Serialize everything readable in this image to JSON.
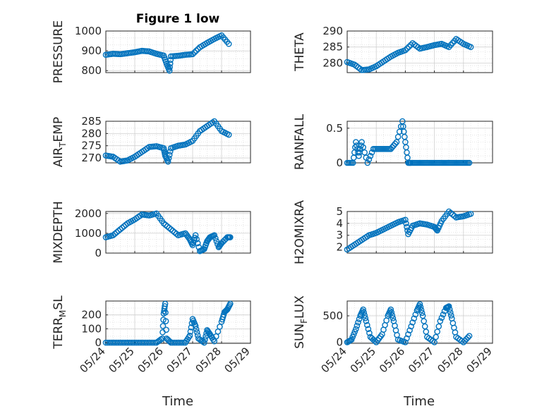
{
  "figure": {
    "title": "Figure 1 low",
    "xlabel": "Time",
    "marker_color": "#0072BD",
    "grid_color": "#d0d0d0",
    "axis_color": "#262626"
  },
  "chart_data": [
    {
      "type": "scatter",
      "ylabel": "PRESSURE",
      "ylabel_parts": [
        "PRESSURE"
      ],
      "ylim": [
        790,
        1000
      ],
      "yticks": [
        800,
        900,
        1000
      ],
      "xlim": [
        "05/24",
        "05/29"
      ],
      "xticks": [
        "05/24",
        "05/25",
        "05/26",
        "05/27",
        "05/28",
        "05/29"
      ],
      "grid": true,
      "marker": "circle-open",
      "x": [
        0.0,
        0.25,
        0.5,
        0.75,
        1.0,
        1.25,
        1.5,
        1.75,
        2.0,
        2.1,
        2.2,
        2.25,
        2.5,
        2.75,
        3.0,
        3.25,
        3.5,
        3.75,
        4.0,
        4.25
      ],
      "y": [
        880,
        885,
        883,
        888,
        893,
        900,
        897,
        885,
        876,
        835,
        800,
        872,
        875,
        880,
        883,
        918,
        940,
        960,
        978,
        935
      ]
    },
    {
      "type": "scatter",
      "ylabel": "THETA",
      "ylabel_parts": [
        "THETA"
      ],
      "ylim": [
        277,
        290
      ],
      "yticks": [
        280,
        285,
        290
      ],
      "xlim": [
        "05/24",
        "05/29"
      ],
      "xticks": [
        "05/24",
        "05/25",
        "05/26",
        "05/27",
        "05/28",
        "05/29"
      ],
      "grid": true,
      "marker": "circle-open",
      "x": [
        0.0,
        0.25,
        0.5,
        0.75,
        1.0,
        1.25,
        1.5,
        1.75,
        2.0,
        2.25,
        2.5,
        2.75,
        3.0,
        3.25,
        3.5,
        3.75,
        4.0,
        4.25
      ],
      "y": [
        280.3,
        279.5,
        277.8,
        278.0,
        279.0,
        280.5,
        282.0,
        283.2,
        284.0,
        286.2,
        284.5,
        285.0,
        285.6,
        286.0,
        285.0,
        287.5,
        286.0,
        285.0
      ]
    },
    {
      "type": "scatter",
      "ylabel": "AIR_TEMP",
      "ylabel_parts": [
        "AIR",
        "T",
        "EMP"
      ],
      "ylim": [
        268,
        285
      ],
      "yticks": [
        270,
        275,
        280,
        285
      ],
      "xlim": [
        "05/24",
        "05/29"
      ],
      "xticks": [
        "05/24",
        "05/25",
        "05/26",
        "05/27",
        "05/28",
        "05/29"
      ],
      "grid": true,
      "marker": "circle-open",
      "x": [
        0.0,
        0.25,
        0.5,
        0.75,
        1.0,
        1.25,
        1.5,
        1.75,
        2.0,
        2.05,
        2.15,
        2.25,
        2.5,
        2.75,
        3.0,
        3.25,
        3.5,
        3.75,
        4.0,
        4.25
      ],
      "y": [
        271,
        270.5,
        268.5,
        269.0,
        270.5,
        272.5,
        274.5,
        274.8,
        274.0,
        271.0,
        268.5,
        274.0,
        275.0,
        275.5,
        277.0,
        281.0,
        283.0,
        285.0,
        281.0,
        279.5
      ]
    },
    {
      "type": "scatter",
      "ylabel": "RAINFALL",
      "ylabel_parts": [
        "RAINFALL"
      ],
      "ylim": [
        0,
        0.6
      ],
      "yticks": [
        0,
        0.5
      ],
      "xlim": [
        "05/24",
        "05/29"
      ],
      "xticks": [
        "05/24",
        "05/25",
        "05/26",
        "05/27",
        "05/28",
        "05/29"
      ],
      "grid": true,
      "marker": "circle-open",
      "x": [
        0.0,
        0.2,
        0.3,
        0.4,
        0.5,
        0.7,
        0.9,
        1.1,
        1.3,
        1.5,
        1.7,
        1.9,
        2.0,
        2.1,
        2.2,
        2.4,
        2.6,
        2.8,
        3.0,
        3.2,
        3.4,
        3.6,
        3.8,
        4.0,
        4.2
      ],
      "y": [
        0,
        0,
        0.3,
        0.1,
        0.3,
        0,
        0.2,
        0.2,
        0.2,
        0.2,
        0.3,
        0.6,
        0.3,
        0,
        0,
        0,
        0,
        0,
        0,
        0,
        0,
        0,
        0,
        0,
        0
      ]
    },
    {
      "type": "scatter",
      "ylabel": "MIXDEPTH",
      "ylabel_parts": [
        "MIXDEPTH"
      ],
      "ylim": [
        0,
        2100
      ],
      "yticks": [
        0,
        1000,
        2000
      ],
      "xlim": [
        "05/24",
        "05/29"
      ],
      "xticks": [
        "05/24",
        "05/25",
        "05/26",
        "05/27",
        "05/28",
        "05/29"
      ],
      "grid": true,
      "marker": "circle-open",
      "x": [
        0.0,
        0.25,
        0.5,
        0.75,
        1.0,
        1.25,
        1.5,
        1.75,
        2.0,
        2.25,
        2.5,
        2.75,
        2.9,
        3.0,
        3.1,
        3.25,
        3.4,
        3.5,
        3.6,
        3.75,
        3.9,
        4.0,
        4.2,
        4.3
      ],
      "y": [
        800,
        900,
        1200,
        1500,
        1700,
        1950,
        1900,
        2000,
        1500,
        1200,
        900,
        1000,
        700,
        400,
        900,
        100,
        200,
        600,
        800,
        900,
        300,
        500,
        800,
        800
      ]
    },
    {
      "type": "scatter",
      "ylabel": "H2OMIXRA",
      "ylabel_parts": [
        "H2OMIXRA"
      ],
      "ylim": [
        1.5,
        5
      ],
      "yticks": [
        2,
        3,
        4,
        5
      ],
      "xlim": [
        "05/24",
        "05/29"
      ],
      "xticks": [
        "05/24",
        "05/25",
        "05/26",
        "05/27",
        "05/28",
        "05/29"
      ],
      "grid": true,
      "marker": "circle-open",
      "x": [
        0.0,
        0.25,
        0.5,
        0.75,
        1.0,
        1.25,
        1.5,
        1.75,
        2.0,
        2.1,
        2.25,
        2.5,
        2.75,
        3.0,
        3.1,
        3.25,
        3.5,
        3.75,
        4.0,
        4.25
      ],
      "y": [
        1.8,
        2.2,
        2.6,
        3.0,
        3.2,
        3.5,
        3.8,
        4.1,
        4.3,
        3.1,
        3.8,
        4.0,
        3.9,
        3.7,
        3.4,
        4.2,
        5.0,
        4.5,
        4.6,
        4.8
      ]
    },
    {
      "type": "scatter",
      "ylabel": "TERR_MSL",
      "ylabel_parts": [
        "TERR",
        "M",
        "SL"
      ],
      "ylim": [
        -5,
        300
      ],
      "yticks": [
        0,
        100,
        200
      ],
      "xlim": [
        "05/24",
        "05/29"
      ],
      "xticks": [
        "05/24",
        "05/25",
        "05/26",
        "05/27",
        "05/28",
        "05/29"
      ],
      "grid": true,
      "marker": "circle-open",
      "x": [
        0.0,
        0.25,
        0.5,
        0.75,
        1.0,
        1.25,
        1.5,
        1.75,
        1.95,
        2.0,
        2.05,
        2.1,
        2.25,
        2.5,
        2.75,
        2.9,
        3.0,
        3.1,
        3.2,
        3.4,
        3.5,
        3.6,
        3.75,
        4.0,
        4.1,
        4.2,
        4.3
      ],
      "y": [
        0,
        0,
        0,
        0,
        0,
        0,
        0,
        0,
        30,
        210,
        280,
        30,
        0,
        0,
        0,
        50,
        170,
        120,
        30,
        0,
        90,
        60,
        10,
        150,
        220,
        240,
        280
      ]
    },
    {
      "type": "scatter",
      "ylabel": "SUN_FLUX",
      "ylabel_parts": [
        "SUN",
        "F",
        "LUX"
      ],
      "ylim": [
        -20,
        780
      ],
      "yticks": [
        0,
        500
      ],
      "xlim": [
        "05/24",
        "05/29"
      ],
      "xticks": [
        "05/24",
        "05/25",
        "05/26",
        "05/27",
        "05/28",
        "05/29"
      ],
      "grid": true,
      "marker": "circle-open",
      "x": [
        0.0,
        0.15,
        0.3,
        0.45,
        0.55,
        0.65,
        0.8,
        1.0,
        1.2,
        1.4,
        1.5,
        1.6,
        1.75,
        2.0,
        2.2,
        2.4,
        2.5,
        2.6,
        2.75,
        3.0,
        3.2,
        3.4,
        3.5,
        3.6,
        3.75,
        4.0,
        4.2
      ],
      "y": [
        0,
        50,
        250,
        500,
        620,
        400,
        100,
        0,
        150,
        500,
        620,
        400,
        50,
        0,
        300,
        600,
        720,
        500,
        100,
        0,
        400,
        650,
        680,
        450,
        100,
        0,
        120
      ]
    }
  ]
}
